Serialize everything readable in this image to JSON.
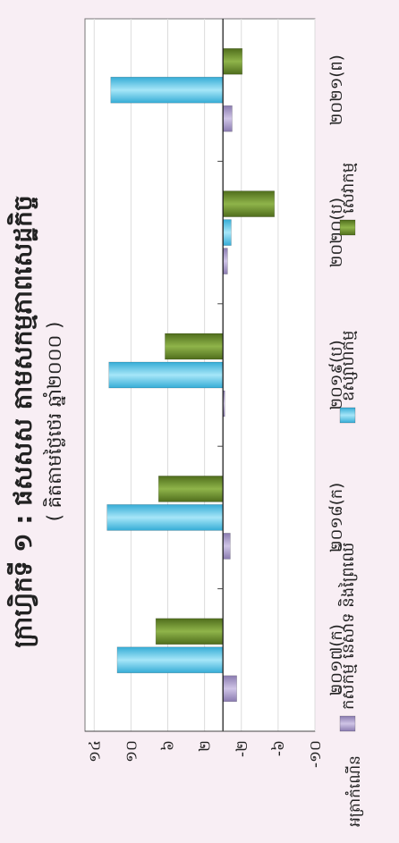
{
  "chart_data": {
    "type": "bar",
    "orientation": "vertical-rotated",
    "title": "ក្រាហ្វិកទី ១ : ផសសស តាមសកម្មភាពសេដ្ឋកិច្ច",
    "subtitle": "( គិតតាមថ្លៃថេរ ឆ្នាំ២០០០ )",
    "ylabel": "អត្រាកំណើន",
    "categories": [
      "២០១៧(ក)",
      "២០១៨(ក)",
      "២០១៩(ប)",
      "២០២០(ប)",
      "២០២១(ព)"
    ],
    "ytick_labels": [
      "១៤",
      "១០",
      "៦",
      "២",
      "-២",
      "-៦",
      "-១០"
    ],
    "ytick_values": [
      14,
      10,
      6,
      2,
      -2,
      -6,
      -10
    ],
    "ylim": [
      -10,
      15
    ],
    "grid": true,
    "legend_position": "bottom",
    "series": [
      {
        "name": "កសិកម្ម នេសាទ និងព្រៃឈើ",
        "color": "#a99ac8",
        "values": [
          -1.5,
          -0.8,
          -0.2,
          -0.5,
          -1.0
        ]
      },
      {
        "name": "ឧស្សាហកម្ម",
        "color": "#5bc8e8",
        "values": [
          11.5,
          12.6,
          12.4,
          -0.9,
          12.2
        ]
      },
      {
        "name": "សេវាកម្ម",
        "color": "#6b8f2a",
        "values": [
          7.3,
          7.0,
          6.3,
          -5.6,
          -2.1
        ]
      }
    ]
  }
}
